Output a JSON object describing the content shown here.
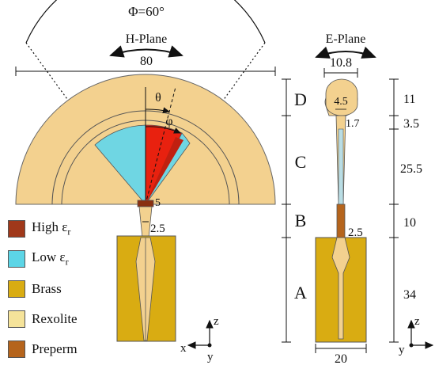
{
  "annotations": {
    "phi_top": "Φ=60°",
    "h_plane": "H-Plane",
    "e_plane": "E-Plane",
    "dim_80": "80",
    "dim_10_8": "10.8",
    "dim_4_5": "4.5",
    "dim_1_7": "1.7",
    "dim_5": "5",
    "dim_2_5_left": "2.5",
    "dim_2_5_right": "2.5",
    "dim_20": "20",
    "theta": "θ",
    "phi_small": "φ"
  },
  "sections": [
    {
      "label": "D",
      "height": "11"
    },
    {
      "label": "C",
      "height": "3.5"
    },
    {
      "label": "",
      "height": "25.5"
    },
    {
      "label": "B",
      "height": "10"
    },
    {
      "label": "A",
      "height": "34"
    }
  ],
  "section_labels": {
    "D": "D",
    "C": "C",
    "B": "B",
    "A": "A"
  },
  "right_dims": {
    "d11": "11",
    "d3_5": "3.5",
    "d25_5": "25.5",
    "d10": "10",
    "d34": "34"
  },
  "legend": [
    {
      "label": "High ε",
      "sub": "r",
      "color": "#a0381a"
    },
    {
      "label": "Low ε",
      "sub": "r",
      "color": "#5cd5e6"
    },
    {
      "label": "Brass",
      "sub": "",
      "color": "#d9ac12"
    },
    {
      "label": "Rexolite",
      "sub": "",
      "color": "#f5e39a"
    },
    {
      "label": "Preperm",
      "sub": "",
      "color": "#b5641c"
    }
  ],
  "axes_left": {
    "z": "z",
    "x": "x",
    "y": "y"
  },
  "axes_right": {
    "z": "z",
    "y": "y"
  },
  "colors": {
    "rexolite_body": "#f3d18f",
    "high_er": "#e8210f",
    "low_er": "#6fd6e3",
    "brass": "#d9ac12",
    "preperm": "#b5641c"
  }
}
